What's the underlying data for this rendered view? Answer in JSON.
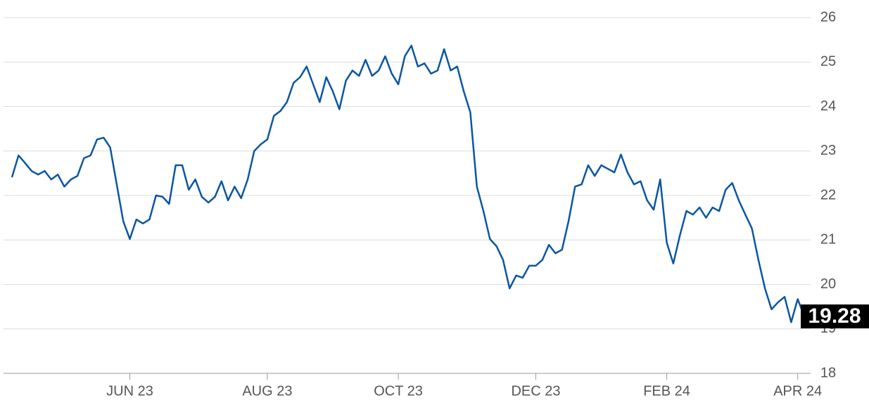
{
  "chart_data": {
    "type": "line",
    "categories": [
      null,
      null,
      null,
      null,
      null,
      null,
      null,
      null,
      null,
      null,
      null,
      null,
      null,
      null,
      null,
      null,
      null,
      null,
      "JUN 23",
      null,
      null,
      null,
      null,
      null,
      null,
      null,
      null,
      null,
      null,
      null,
      null,
      null,
      null,
      null,
      null,
      null,
      null,
      null,
      null,
      "AUG 23",
      null,
      null,
      null,
      null,
      null,
      null,
      null,
      null,
      null,
      null,
      null,
      null,
      null,
      null,
      null,
      null,
      null,
      null,
      null,
      "OCT 23",
      null,
      null,
      null,
      null,
      null,
      null,
      null,
      null,
      null,
      null,
      null,
      null,
      null,
      null,
      null,
      null,
      null,
      null,
      null,
      null,
      "DEC 23",
      null,
      null,
      null,
      null,
      null,
      null,
      null,
      null,
      null,
      null,
      null,
      null,
      null,
      null,
      null,
      null,
      null,
      null,
      null,
      "FEB 24",
      null,
      null,
      null,
      null,
      null,
      null,
      null,
      null,
      null,
      null,
      null,
      null,
      null,
      null,
      null,
      null,
      null,
      null,
      null,
      "APR 24",
      null
    ],
    "values": [
      22.41,
      22.9,
      22.73,
      22.55,
      22.47,
      22.55,
      22.36,
      22.47,
      22.2,
      22.36,
      22.44,
      22.84,
      22.9,
      23.26,
      23.3,
      23.08,
      22.25,
      21.42,
      21.02,
      21.46,
      21.37,
      21.46,
      22.0,
      21.97,
      21.81,
      22.68,
      22.68,
      22.13,
      22.36,
      21.97,
      21.84,
      21.97,
      22.32,
      21.89,
      22.2,
      21.94,
      22.36,
      23.0,
      23.15,
      23.26,
      23.79,
      23.9,
      24.1,
      24.53,
      24.66,
      24.9,
      24.5,
      24.1,
      24.66,
      24.34,
      23.94,
      24.58,
      24.81,
      24.69,
      25.05,
      24.69,
      24.81,
      25.13,
      24.74,
      24.5,
      25.13,
      25.37,
      24.9,
      24.97,
      24.74,
      24.81,
      25.29,
      24.81,
      24.9,
      24.34,
      23.87,
      22.2,
      21.65,
      21.02,
      20.86,
      20.55,
      19.91,
      20.2,
      20.15,
      20.42,
      20.42,
      20.55,
      20.89,
      20.7,
      20.78,
      21.42,
      22.2,
      22.25,
      22.68,
      22.44,
      22.68,
      22.6,
      22.52,
      22.92,
      22.52,
      22.25,
      22.32,
      21.89,
      21.68,
      22.36,
      20.94,
      20.47,
      21.1,
      21.65,
      21.57,
      21.73,
      21.5,
      21.73,
      21.65,
      22.13,
      22.28,
      21.89,
      21.57,
      21.26,
      20.55,
      19.91,
      19.44,
      19.6,
      19.72,
      19.15,
      19.67,
      19.28
    ],
    "color": "#0b56a3",
    "ylim": [
      18,
      26
    ],
    "yticks": [
      18,
      19,
      20,
      21,
      22,
      23,
      24,
      25,
      26
    ],
    "grid": true
  }
}
